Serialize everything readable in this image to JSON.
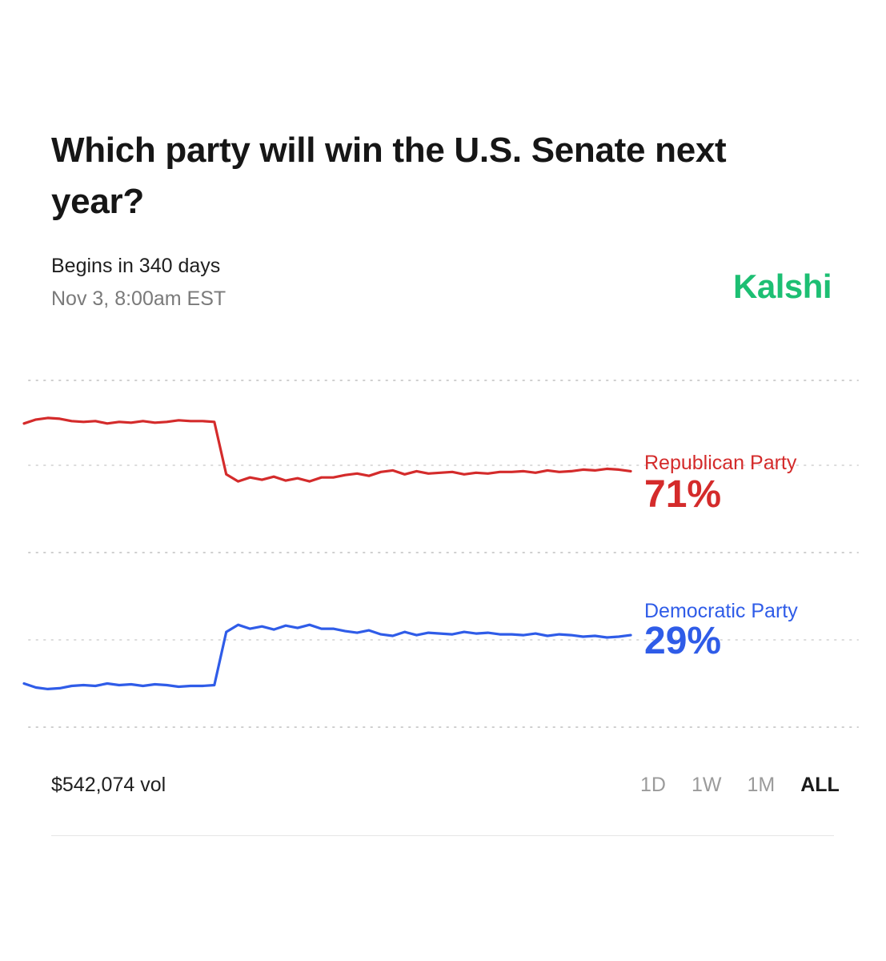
{
  "header": {
    "title": "Which party will win the U.S. Senate next year?",
    "begins": "Begins in 340 days",
    "date": "Nov 3, 8:00am EST",
    "brand": "Kalshi"
  },
  "footer": {
    "volume": "$542,074 vol",
    "ranges": [
      "1D",
      "1W",
      "1M",
      "ALL"
    ],
    "active_range": "ALL"
  },
  "colors": {
    "republican": "#d42b2b",
    "democratic": "#2f5ce8",
    "brand": "#1dbf73"
  },
  "chart_data": {
    "type": "line",
    "y_range": [
      0,
      100
    ],
    "grid": true,
    "series": [
      {
        "name": "Republican Party",
        "label_value": "71%",
        "color": "#d42b2b",
        "values": [
          76.5,
          77,
          77.2,
          77.1,
          76.8,
          76.7,
          76.8,
          76.5,
          76.7,
          76.6,
          76.8,
          76.6,
          76.7,
          76.9,
          76.8,
          76.8,
          76.7,
          70,
          69.1,
          69.6,
          69.3,
          69.7,
          69.2,
          69.5,
          69.1,
          69.6,
          69.6,
          69.9,
          70.1,
          69.8,
          70.3,
          70.5,
          70,
          70.4,
          70.1,
          70.2,
          70.3,
          70.0,
          70.2,
          70.1,
          70.3,
          70.3,
          70.4,
          70.2,
          70.5,
          70.3,
          70.4,
          70.6,
          70.5,
          70.7,
          70.6,
          70.4
        ]
      },
      {
        "name": "Democratic Party",
        "label_value": "29%",
        "color": "#2f5ce8",
        "values": [
          23.5,
          23,
          22.8,
          22.9,
          23.2,
          23.3,
          23.2,
          23.5,
          23.3,
          23.4,
          23.2,
          23.4,
          23.3,
          23.1,
          23.2,
          23.2,
          23.3,
          30,
          30.9,
          30.4,
          30.7,
          30.3,
          30.8,
          30.5,
          30.9,
          30.4,
          30.4,
          30.1,
          29.9,
          30.2,
          29.7,
          29.5,
          30,
          29.6,
          29.9,
          29.8,
          29.7,
          30.0,
          29.8,
          29.9,
          29.7,
          29.7,
          29.6,
          29.8,
          29.5,
          29.7,
          29.6,
          29.4,
          29.5,
          29.3,
          29.4,
          29.6
        ]
      }
    ]
  }
}
